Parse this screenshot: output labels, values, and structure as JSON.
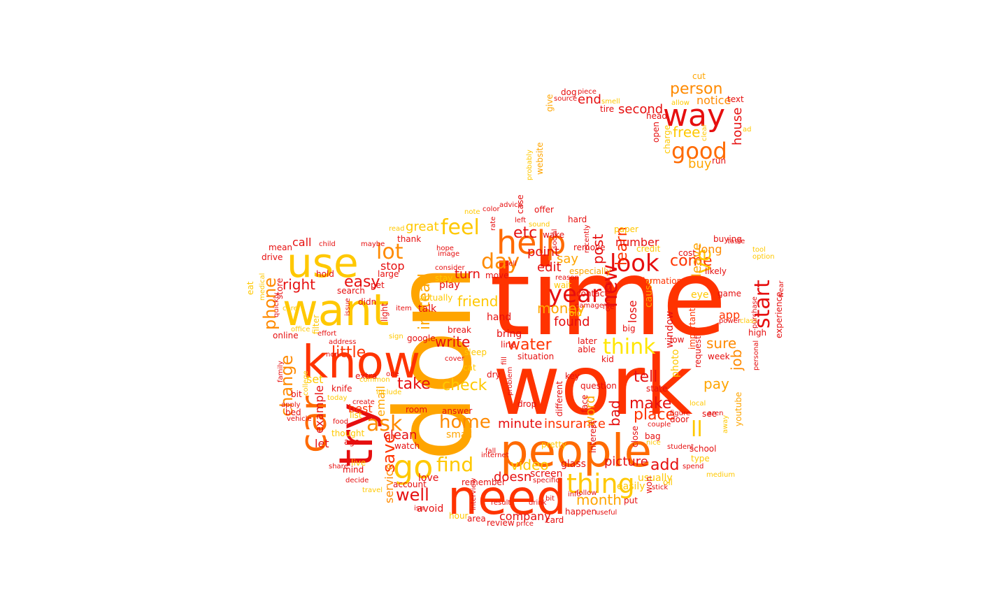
{
  "palette": {
    "red": "#e60f0f",
    "red_orange": "#ff3300",
    "orange": "#ff6a00",
    "dark_orange": "#ff8a00",
    "amber": "#ffa500",
    "gold": "#ffc800",
    "yellow": "#ffe600",
    "background": "#ffffff"
  },
  "words": [
    {
      "text": "time",
      "color": "red_orange"
    },
    {
      "text": "don",
      "color": "amber"
    },
    {
      "text": "work",
      "color": "red_orange"
    },
    {
      "text": "people",
      "color": "orange"
    },
    {
      "text": "need",
      "color": "red_orange"
    },
    {
      "text": "know",
      "color": "red_orange"
    },
    {
      "text": "want",
      "color": "gold"
    },
    {
      "text": "use",
      "color": "gold"
    },
    {
      "text": "try",
      "color": "red"
    },
    {
      "text": "car",
      "color": "orange"
    },
    {
      "text": "help",
      "color": "orange"
    },
    {
      "text": "way",
      "color": "red"
    },
    {
      "text": "good",
      "color": "orange"
    },
    {
      "text": "go",
      "color": "gold"
    },
    {
      "text": "thing",
      "color": "gold"
    },
    {
      "text": "look",
      "color": "red"
    },
    {
      "text": "feel",
      "color": "gold"
    },
    {
      "text": "lot",
      "color": "dark_orange"
    },
    {
      "text": "day",
      "color": "dark_orange"
    },
    {
      "text": "year",
      "color": "red"
    },
    {
      "text": "think",
      "color": "yellow"
    },
    {
      "text": "ask",
      "color": "dark_orange"
    },
    {
      "text": "find",
      "color": "gold"
    },
    {
      "text": "home",
      "color": "dark_orange"
    },
    {
      "text": "person",
      "color": "dark_orange"
    },
    {
      "text": "start",
      "color": "red"
    },
    {
      "text": "water",
      "color": "red_orange"
    },
    {
      "text": "new",
      "color": "red"
    },
    {
      "text": "phone",
      "color": "dark_orange"
    },
    {
      "text": "change",
      "color": "dark_orange"
    },
    {
      "text": "check",
      "color": "gold"
    },
    {
      "text": "save",
      "color": "red_orange"
    },
    {
      "text": "little",
      "color": "red_orange"
    },
    {
      "text": "easy",
      "color": "red"
    },
    {
      "text": "right",
      "color": "red"
    },
    {
      "text": "friend",
      "color": "gold"
    },
    {
      "text": "ll",
      "color": "gold"
    },
    {
      "text": "job",
      "color": "dark_orange"
    },
    {
      "text": "make",
      "color": "red"
    },
    {
      "text": "tell",
      "color": "red"
    },
    {
      "text": "video",
      "color": "gold"
    },
    {
      "text": "add",
      "color": "red"
    },
    {
      "text": "month",
      "color": "amber"
    },
    {
      "text": "well",
      "color": "red"
    },
    {
      "text": "take",
      "color": "red"
    },
    {
      "text": "write",
      "color": "red"
    },
    {
      "text": "instead",
      "color": "amber"
    },
    {
      "text": "learn",
      "color": "red_orange"
    },
    {
      "text": "come",
      "color": "red_orange"
    },
    {
      "text": "pay",
      "color": "amber"
    },
    {
      "text": "sure",
      "color": "dark_orange"
    },
    {
      "text": "free",
      "color": "gold"
    },
    {
      "text": "post",
      "color": "red"
    },
    {
      "text": "money",
      "color": "amber"
    },
    {
      "text": "place",
      "color": "red_orange"
    },
    {
      "text": "insurance",
      "color": "red_orange"
    },
    {
      "text": "minute",
      "color": "red"
    },
    {
      "text": "picture",
      "color": "red"
    },
    {
      "text": "doesn",
      "color": "red"
    },
    {
      "text": "clean",
      "color": "red"
    },
    {
      "text": "bad",
      "color": "red"
    },
    {
      "text": "ve",
      "color": "gold"
    },
    {
      "text": "leave",
      "color": "amber"
    },
    {
      "text": "found",
      "color": "red"
    },
    {
      "text": "second",
      "color": "red"
    },
    {
      "text": "house",
      "color": "red"
    },
    {
      "text": "buy",
      "color": "amber"
    },
    {
      "text": "etc",
      "color": "red"
    },
    {
      "text": "great",
      "color": "gold"
    },
    {
      "text": "point",
      "color": "red"
    },
    {
      "text": "say",
      "color": "amber"
    },
    {
      "text": "edit",
      "color": "red"
    },
    {
      "text": "end",
      "color": "red"
    },
    {
      "text": "notice",
      "color": "dark_orange"
    },
    {
      "text": "call",
      "color": "red"
    },
    {
      "text": "stop",
      "color": "red"
    },
    {
      "text": "turn",
      "color": "red"
    },
    {
      "text": "number",
      "color": "red"
    },
    {
      "text": "long",
      "color": "dark_orange"
    },
    {
      "text": "app",
      "color": "red_orange"
    },
    {
      "text": "word",
      "color": "amber"
    },
    {
      "text": "service",
      "color": "dark_orange"
    },
    {
      "text": "company",
      "color": "red"
    },
    {
      "text": "example",
      "color": "red"
    },
    {
      "text": "email",
      "color": "amber"
    },
    {
      "text": "small",
      "color": "amber"
    },
    {
      "text": "let",
      "color": "red"
    },
    {
      "text": "best",
      "color": "red_orange"
    },
    {
      "text": "set",
      "color": "gold"
    },
    {
      "text": "hand",
      "color": "red"
    },
    {
      "text": "talk",
      "color": "red"
    },
    {
      "text": "bring",
      "color": "red"
    },
    {
      "text": "line",
      "color": "red"
    },
    {
      "text": "lose",
      "color": "red"
    },
    {
      "text": "cause",
      "color": "amber"
    },
    {
      "text": "information",
      "color": "red_orange"
    },
    {
      "text": "important",
      "color": "red_orange"
    },
    {
      "text": "window",
      "color": "red"
    },
    {
      "text": "photo",
      "color": "gold"
    },
    {
      "text": "state",
      "color": "red"
    },
    {
      "text": "door",
      "color": "red"
    },
    {
      "text": "school",
      "color": "red"
    },
    {
      "text": "week",
      "color": "red"
    },
    {
      "text": "request",
      "color": "red"
    },
    {
      "text": "eye",
      "color": "gold"
    },
    {
      "text": "cost",
      "color": "red"
    },
    {
      "text": "buying",
      "color": "red"
    },
    {
      "text": "game",
      "color": "red"
    },
    {
      "text": "high",
      "color": "red"
    },
    {
      "text": "experience",
      "color": "red"
    },
    {
      "text": "youtube",
      "color": "amber"
    },
    {
      "text": "online",
      "color": "red"
    },
    {
      "text": "drive",
      "color": "red"
    },
    {
      "text": "mean",
      "color": "red"
    },
    {
      "text": "store",
      "color": "red"
    },
    {
      "text": "search",
      "color": "red"
    },
    {
      "text": "didn",
      "color": "red"
    },
    {
      "text": "google",
      "color": "red"
    },
    {
      "text": "watch",
      "color": "red"
    },
    {
      "text": "account",
      "color": "red"
    },
    {
      "text": "avoid",
      "color": "red"
    },
    {
      "text": "review",
      "color": "red"
    },
    {
      "text": "card",
      "color": "red"
    },
    {
      "text": "area",
      "color": "red"
    },
    {
      "text": "hour",
      "color": "gold"
    },
    {
      "text": "happen",
      "color": "red"
    },
    {
      "text": "put",
      "color": "red"
    },
    {
      "text": "usually",
      "color": "gold"
    },
    {
      "text": "easily",
      "color": "gold"
    },
    {
      "text": "screen",
      "color": "red"
    },
    {
      "text": "remember",
      "color": "red"
    },
    {
      "text": "love",
      "color": "red"
    },
    {
      "text": "room",
      "color": "red"
    },
    {
      "text": "answer",
      "color": "red"
    },
    {
      "text": "thought",
      "color": "gold"
    },
    {
      "text": "ago",
      "color": "red"
    },
    {
      "text": "extra",
      "color": "red"
    },
    {
      "text": "list",
      "color": "gold"
    },
    {
      "text": "mind",
      "color": "red"
    },
    {
      "text": "live",
      "color": "gold"
    },
    {
      "text": "share",
      "color": "red"
    },
    {
      "text": "decide",
      "color": "red"
    },
    {
      "text": "travel",
      "color": "gold"
    },
    {
      "text": "bed",
      "color": "red"
    },
    {
      "text": "bit",
      "color": "red"
    },
    {
      "text": "apply",
      "color": "red"
    },
    {
      "text": "family",
      "color": "red"
    },
    {
      "text": "vehicle",
      "color": "red"
    },
    {
      "text": "food",
      "color": "red"
    },
    {
      "text": "create",
      "color": "red"
    },
    {
      "text": "sleep",
      "color": "gold"
    },
    {
      "text": "break",
      "color": "red"
    },
    {
      "text": "cover",
      "color": "red"
    },
    {
      "text": "dry",
      "color": "red"
    },
    {
      "text": "situation",
      "color": "red"
    },
    {
      "text": "different",
      "color": "red"
    },
    {
      "text": "question",
      "color": "red"
    },
    {
      "text": "kid",
      "color": "red"
    },
    {
      "text": "face",
      "color": "red"
    },
    {
      "text": "able",
      "color": "red"
    },
    {
      "text": "later",
      "color": "red"
    },
    {
      "text": "contact",
      "color": "red"
    },
    {
      "text": "old",
      "color": "gold"
    },
    {
      "text": "wait",
      "color": "gold"
    },
    {
      "text": "especially",
      "color": "amber"
    },
    {
      "text": "remove",
      "color": "red"
    },
    {
      "text": "hard",
      "color": "red"
    },
    {
      "text": "wake",
      "color": "red"
    },
    {
      "text": "social",
      "color": "red"
    },
    {
      "text": "sound",
      "color": "gold"
    },
    {
      "text": "left",
      "color": "red"
    },
    {
      "text": "offer",
      "color": "red"
    },
    {
      "text": "color",
      "color": "red"
    },
    {
      "text": "note",
      "color": "gold"
    },
    {
      "text": "rate",
      "color": "red"
    },
    {
      "text": "case",
      "color": "red"
    },
    {
      "text": "website",
      "color": "amber"
    },
    {
      "text": "probably",
      "color": "gold"
    },
    {
      "text": "give",
      "color": "amber"
    },
    {
      "text": "dog",
      "color": "red"
    },
    {
      "text": "piece",
      "color": "red"
    },
    {
      "text": "source",
      "color": "red"
    },
    {
      "text": "smell",
      "color": "gold"
    },
    {
      "text": "tire",
      "color": "red"
    },
    {
      "text": "head",
      "color": "red"
    },
    {
      "text": "open",
      "color": "red"
    },
    {
      "text": "charge",
      "color": "gold"
    },
    {
      "text": "run",
      "color": "red"
    },
    {
      "text": "cut",
      "color": "amber"
    },
    {
      "text": "text",
      "color": "red"
    },
    {
      "text": "allow",
      "color": "gold"
    },
    {
      "text": "ad",
      "color": "gold"
    },
    {
      "text": "clear",
      "color": "gold"
    },
    {
      "text": "thank",
      "color": "red"
    },
    {
      "text": "read",
      "color": "gold"
    },
    {
      "text": "maybe",
      "color": "red"
    },
    {
      "text": "child",
      "color": "red"
    },
    {
      "text": "image",
      "color": "red"
    },
    {
      "text": "consider",
      "color": "red"
    },
    {
      "text": "hope",
      "color": "red"
    },
    {
      "text": "sell",
      "color": "red"
    },
    {
      "text": "move",
      "color": "red"
    },
    {
      "text": "actually",
      "color": "gold"
    },
    {
      "text": "play",
      "color": "red"
    },
    {
      "text": "stay",
      "color": "gold"
    },
    {
      "text": "large",
      "color": "red"
    },
    {
      "text": "pet",
      "color": "red"
    },
    {
      "text": "item",
      "color": "red"
    },
    {
      "text": "issue",
      "color": "red"
    },
    {
      "text": "effort",
      "color": "red"
    },
    {
      "text": "address",
      "color": "red"
    },
    {
      "text": "hold",
      "color": "red"
    },
    {
      "text": "quickly",
      "color": "red"
    },
    {
      "text": "care",
      "color": "gold"
    },
    {
      "text": "eat",
      "color": "gold"
    },
    {
      "text": "medical",
      "color": "gold"
    },
    {
      "text": "office",
      "color": "gold"
    },
    {
      "text": "non",
      "color": "red"
    },
    {
      "text": "filter",
      "color": "gold"
    },
    {
      "text": "light",
      "color": "red"
    },
    {
      "text": "sign",
      "color": "gold"
    },
    {
      "text": "cat",
      "color": "gold"
    },
    {
      "text": "one",
      "color": "red"
    },
    {
      "text": "common",
      "color": "gold"
    },
    {
      "text": "include",
      "color": "gold"
    },
    {
      "text": "knife",
      "color": "red"
    },
    {
      "text": "today",
      "color": "gold"
    },
    {
      "text": "college",
      "color": "gold"
    },
    {
      "text": "fire",
      "color": "red"
    },
    {
      "text": "damage",
      "color": "red"
    },
    {
      "text": "reason",
      "color": "red"
    },
    {
      "text": "big",
      "color": "red"
    },
    {
      "text": "key",
      "color": "red"
    },
    {
      "text": "drop",
      "color": "red"
    },
    {
      "text": "problem",
      "color": "red"
    },
    {
      "text": "fill",
      "color": "red"
    },
    {
      "text": "pretty",
      "color": "gold"
    },
    {
      "text": "glass",
      "color": "red"
    },
    {
      "text": "interest",
      "color": "red"
    },
    {
      "text": "internet",
      "color": "red"
    },
    {
      "text": "fall",
      "color": "red"
    },
    {
      "text": "specific",
      "color": "red"
    },
    {
      "text": "drink",
      "color": "red"
    },
    {
      "text": "bit",
      "color": "red"
    },
    {
      "text": "follow",
      "color": "red"
    },
    {
      "text": "info",
      "color": "red"
    },
    {
      "text": "result",
      "color": "red"
    },
    {
      "text": "interview",
      "color": "red"
    },
    {
      "text": "isn",
      "color": "red"
    },
    {
      "text": "price",
      "color": "red"
    },
    {
      "text": "useful",
      "color": "red"
    },
    {
      "text": "won",
      "color": "red"
    },
    {
      "text": "oil",
      "color": "gold"
    },
    {
      "text": "stick",
      "color": "red"
    },
    {
      "text": "bag",
      "color": "red"
    },
    {
      "text": "close",
      "color": "red"
    },
    {
      "text": "nice",
      "color": "gold"
    },
    {
      "text": "student",
      "color": "red"
    },
    {
      "text": "couple",
      "color": "red"
    },
    {
      "text": "figure",
      "color": "red"
    },
    {
      "text": "see",
      "color": "red"
    },
    {
      "text": "local",
      "color": "gold"
    },
    {
      "text": "low",
      "color": "red"
    },
    {
      "text": "aren",
      "color": "red"
    },
    {
      "text": "away",
      "color": "gold"
    },
    {
      "text": "type",
      "color": "gold"
    },
    {
      "text": "medium",
      "color": "gold"
    },
    {
      "text": "spend",
      "color": "red"
    },
    {
      "text": "personal",
      "color": "red"
    },
    {
      "text": "power",
      "color": "red"
    },
    {
      "text": "class",
      "color": "gold"
    },
    {
      "text": "purchase",
      "color": "red"
    },
    {
      "text": "wear",
      "color": "red"
    },
    {
      "text": "option",
      "color": "gold"
    },
    {
      "text": "tool",
      "color": "gold"
    },
    {
      "text": "taste",
      "color": "red"
    },
    {
      "text": "likely",
      "color": "red"
    },
    {
      "text": "credit",
      "color": "gold"
    },
    {
      "text": "paper",
      "color": "gold"
    },
    {
      "text": "recently",
      "color": "red"
    },
    {
      "text": "comment",
      "color": "red"
    },
    {
      "text": "advice",
      "color": "red"
    }
  ]
}
